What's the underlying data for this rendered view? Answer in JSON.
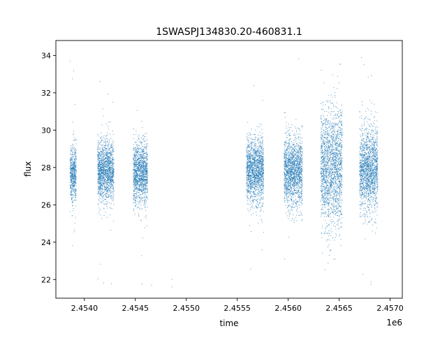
{
  "chart_data": {
    "type": "scatter",
    "title": "1SWASPJ134830.20-460831.1",
    "xlabel": "time",
    "ylabel": "flux",
    "x_offset_label": "1e6",
    "xlim": [
      2453720,
      2457120
    ],
    "ylim": [
      21.0,
      34.8
    ],
    "x_ticks": [
      2.454,
      2.4545,
      2.455,
      2.4555,
      2.456,
      2.4565,
      2.457
    ],
    "x_tick_labels": [
      "2.4540",
      "2.4545",
      "2.4550",
      "2.4555",
      "2.4560",
      "2.4565",
      "2.4570"
    ],
    "y_ticks": [
      22,
      24,
      26,
      28,
      30,
      32,
      34
    ],
    "y_tick_labels": [
      "22",
      "24",
      "26",
      "28",
      "30",
      "32",
      "34"
    ],
    "grid": false,
    "marker_color": "#1f77b4",
    "series": [
      {
        "segments": [
          {
            "start": 2453860,
            "end": 2453920,
            "center": 27.7,
            "spread": 0.75,
            "outlier_min": 23.6,
            "outlier_max": 34.0
          },
          {
            "start": 2454130,
            "end": 2454290,
            "center": 27.8,
            "spread": 0.85,
            "outlier_min": 21.6,
            "outlier_max": 33.3
          },
          {
            "start": 2454480,
            "end": 2454620,
            "center": 27.7,
            "spread": 0.85,
            "outlier_min": 21.6,
            "outlier_max": 33.6
          },
          {
            "start": 2455590,
            "end": 2455760,
            "center": 27.8,
            "spread": 0.85,
            "outlier_min": 22.3,
            "outlier_max": 33.4
          },
          {
            "start": 2455960,
            "end": 2456140,
            "center": 27.8,
            "spread": 0.95,
            "outlier_min": 21.9,
            "outlier_max": 34.1
          },
          {
            "start": 2456320,
            "end": 2456530,
            "center": 28.0,
            "spread": 1.6,
            "outlier_min": 21.6,
            "outlier_max": 34.2
          },
          {
            "start": 2456700,
            "end": 2456880,
            "center": 27.9,
            "spread": 1.1,
            "outlier_min": 21.6,
            "outlier_max": 34.2
          }
        ],
        "isolated_points": [
          {
            "x": 2454660,
            "y": 21.7
          },
          {
            "x": 2454860,
            "y": 22.0
          },
          {
            "x": 2454860,
            "y": 21.6
          }
        ]
      }
    ]
  }
}
